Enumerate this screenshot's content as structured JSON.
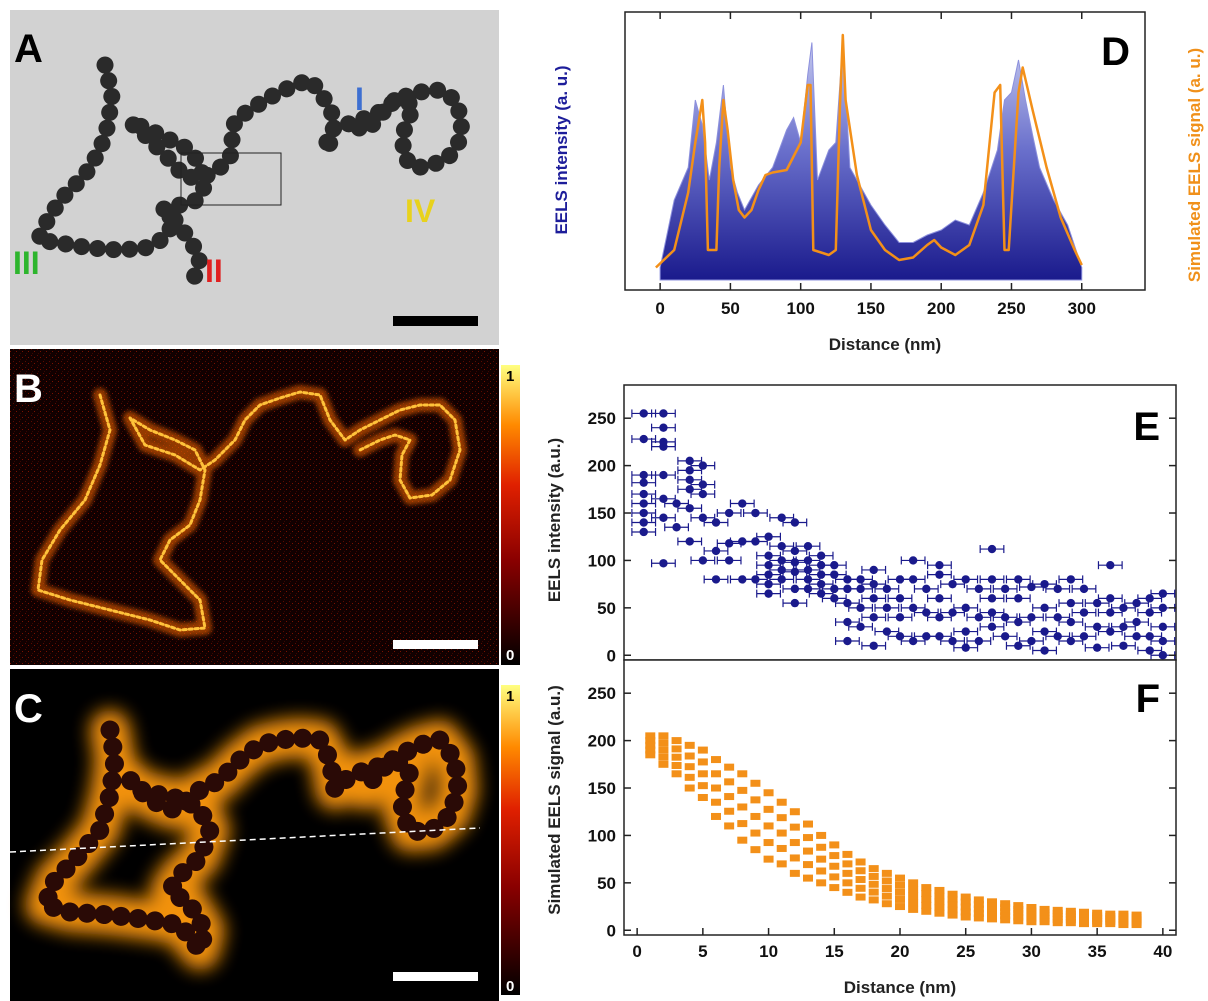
{
  "panels": {
    "A": {
      "letter": "A",
      "chain_labels": [
        {
          "text": "I",
          "color": "#3d6fd1"
        },
        {
          "text": "II",
          "color": "#e02020"
        },
        {
          "text": "III",
          "color": "#2db52d"
        },
        {
          "text": "IV",
          "color": "#e8d21c"
        }
      ]
    },
    "B": {
      "letter": "B",
      "colorbar_max": "1",
      "colorbar_min": "0"
    },
    "C": {
      "letter": "C",
      "colorbar_max": "1",
      "colorbar_min": "0"
    },
    "D": {
      "letter": "D"
    },
    "E": {
      "letter": "E"
    },
    "F": {
      "letter": "F"
    }
  },
  "colors": {
    "eels_blue": "#1a1a8c",
    "sim_orange": "#f39019",
    "label_blue": "#1d1d9a",
    "label_orange": "#f0901a"
  },
  "chart_data": [
    {
      "id": "D",
      "type": "area",
      "xlabel": "Distance (nm)",
      "ylabel_left": "EELS intensity (a. u.)",
      "ylabel_right": "Simulated EELS signal (a. u.)",
      "xlim": [
        -25,
        345
      ],
      "xticks": [
        "0",
        "50",
        "100",
        "150",
        "200",
        "250",
        "300"
      ],
      "xtick_values": [
        0,
        50,
        100,
        150,
        200,
        250,
        300
      ],
      "series": [
        {
          "kind": "measured",
          "x": [
            0,
            10,
            20,
            25,
            30,
            35,
            40,
            45,
            50,
            55,
            60,
            70,
            80,
            90,
            95,
            100,
            105,
            108,
            112,
            120,
            125,
            130,
            135,
            140,
            150,
            160,
            170,
            180,
            190,
            200,
            210,
            220,
            230,
            240,
            245,
            250,
            255,
            260,
            265,
            270,
            280,
            290,
            300
          ],
          "y": [
            0.05,
            0.32,
            0.45,
            0.72,
            0.62,
            0.4,
            0.55,
            0.78,
            0.45,
            0.35,
            0.28,
            0.38,
            0.45,
            0.6,
            0.65,
            0.55,
            0.82,
            0.95,
            0.4,
            0.52,
            0.55,
            0.95,
            0.45,
            0.4,
            0.3,
            0.22,
            0.15,
            0.15,
            0.18,
            0.2,
            0.24,
            0.22,
            0.35,
            0.52,
            0.72,
            0.75,
            0.88,
            0.72,
            0.58,
            0.45,
            0.32,
            0.22,
            0.05
          ]
        },
        {
          "kind": "simulated",
          "x": [
            -3,
            10,
            20,
            25,
            30,
            32,
            34,
            40,
            42,
            45,
            48,
            52,
            56,
            60,
            65,
            70,
            75,
            80,
            90,
            100,
            105,
            107,
            109,
            120,
            125,
            128,
            130,
            132,
            140,
            150,
            160,
            170,
            180,
            190,
            195,
            200,
            210,
            220,
            230,
            238,
            242,
            245,
            248,
            255,
            258,
            265,
            275,
            285,
            295,
            300
          ],
          "y": [
            0.05,
            0.12,
            0.35,
            0.55,
            0.72,
            0.55,
            0.12,
            0.12,
            0.45,
            0.72,
            0.6,
            0.4,
            0.28,
            0.25,
            0.28,
            0.36,
            0.42,
            0.43,
            0.44,
            0.55,
            0.78,
            0.78,
            0.12,
            0.1,
            0.12,
            0.7,
            0.98,
            0.72,
            0.42,
            0.2,
            0.12,
            0.08,
            0.09,
            0.14,
            0.16,
            0.13,
            0.1,
            0.14,
            0.3,
            0.75,
            0.78,
            0.12,
            0.12,
            0.75,
            0.85,
            0.68,
            0.45,
            0.25,
            0.12,
            0.06
          ]
        }
      ]
    },
    {
      "id": "E",
      "type": "scatter",
      "ylabel": "EELS intensity (a.u.)",
      "xlim": [
        -1,
        41
      ],
      "ylim": [
        -5,
        285
      ],
      "yticks": [
        "0",
        "50",
        "100",
        "150",
        "200",
        "250"
      ],
      "ytick_values": [
        0,
        50,
        100,
        150,
        200,
        250
      ],
      "xerr": 0.9,
      "points": [
        [
          0.5,
          255
        ],
        [
          0.5,
          228
        ],
        [
          0.5,
          190
        ],
        [
          0.5,
          182
        ],
        [
          0.5,
          170
        ],
        [
          0.5,
          160
        ],
        [
          0.5,
          150
        ],
        [
          0.5,
          140
        ],
        [
          0.5,
          130
        ],
        [
          2,
          255
        ],
        [
          2,
          240
        ],
        [
          2,
          225
        ],
        [
          2,
          220
        ],
        [
          2,
          190
        ],
        [
          2,
          165
        ],
        [
          2,
          145
        ],
        [
          2,
          97
        ],
        [
          3,
          160
        ],
        [
          3,
          135
        ],
        [
          4,
          205
        ],
        [
          4,
          195
        ],
        [
          4,
          185
        ],
        [
          4,
          175
        ],
        [
          4,
          155
        ],
        [
          4,
          120
        ],
        [
          5,
          200
        ],
        [
          5,
          180
        ],
        [
          5,
          170
        ],
        [
          5,
          145
        ],
        [
          5,
          100
        ],
        [
          6,
          140
        ],
        [
          6,
          110
        ],
        [
          6,
          80
        ],
        [
          7,
          150
        ],
        [
          7,
          118
        ],
        [
          7,
          100
        ],
        [
          8,
          160
        ],
        [
          8,
          120
        ],
        [
          8,
          80
        ],
        [
          9,
          150
        ],
        [
          9,
          120
        ],
        [
          9,
          80
        ],
        [
          10,
          125
        ],
        [
          10,
          105
        ],
        [
          10,
          95
        ],
        [
          10,
          85
        ],
        [
          10,
          75
        ],
        [
          10,
          65
        ],
        [
          11,
          145
        ],
        [
          11,
          115
        ],
        [
          11,
          100
        ],
        [
          11,
          90
        ],
        [
          11,
          80
        ],
        [
          12,
          140
        ],
        [
          12,
          110
        ],
        [
          12,
          98
        ],
        [
          12,
          88
        ],
        [
          12,
          70
        ],
        [
          12,
          55
        ],
        [
          13,
          115
        ],
        [
          13,
          100
        ],
        [
          13,
          90
        ],
        [
          13,
          80
        ],
        [
          13,
          70
        ],
        [
          14,
          105
        ],
        [
          14,
          95
        ],
        [
          14,
          85
        ],
        [
          14,
          75
        ],
        [
          14,
          65
        ],
        [
          15,
          95
        ],
        [
          15,
          85
        ],
        [
          15,
          70
        ],
        [
          15,
          60
        ],
        [
          16,
          80
        ],
        [
          16,
          70
        ],
        [
          16,
          55
        ],
        [
          16,
          35
        ],
        [
          16,
          15
        ],
        [
          17,
          80
        ],
        [
          17,
          70
        ],
        [
          17,
          50
        ],
        [
          17,
          30
        ],
        [
          18,
          90
        ],
        [
          18,
          75
        ],
        [
          18,
          60
        ],
        [
          18,
          40
        ],
        [
          18,
          10
        ],
        [
          19,
          70
        ],
        [
          19,
          50
        ],
        [
          19,
          25
        ],
        [
          20,
          80
        ],
        [
          20,
          60
        ],
        [
          20,
          40
        ],
        [
          20,
          20
        ],
        [
          21,
          100
        ],
        [
          21,
          80
        ],
        [
          21,
          50
        ],
        [
          21,
          15
        ],
        [
          22,
          70
        ],
        [
          22,
          45
        ],
        [
          22,
          20
        ],
        [
          23,
          95
        ],
        [
          23,
          85
        ],
        [
          23,
          60
        ],
        [
          23,
          40
        ],
        [
          23,
          20
        ],
        [
          24,
          75
        ],
        [
          24,
          45
        ],
        [
          24,
          15
        ],
        [
          25,
          80
        ],
        [
          25,
          50
        ],
        [
          25,
          25
        ],
        [
          25,
          8
        ],
        [
          26,
          70
        ],
        [
          26,
          40
        ],
        [
          26,
          15
        ],
        [
          27,
          112
        ],
        [
          27,
          80
        ],
        [
          27,
          60
        ],
        [
          27,
          45
        ],
        [
          27,
          30
        ],
        [
          28,
          70
        ],
        [
          28,
          40
        ],
        [
          28,
          20
        ],
        [
          29,
          80
        ],
        [
          29,
          60
        ],
        [
          29,
          35
        ],
        [
          29,
          10
        ],
        [
          30,
          72
        ],
        [
          30,
          40
        ],
        [
          30,
          15
        ],
        [
          31,
          75
        ],
        [
          31,
          50
        ],
        [
          31,
          25
        ],
        [
          31,
          5
        ],
        [
          32,
          70
        ],
        [
          32,
          40
        ],
        [
          32,
          20
        ],
        [
          33,
          80
        ],
        [
          33,
          55
        ],
        [
          33,
          35
        ],
        [
          33,
          15
        ],
        [
          34,
          70
        ],
        [
          34,
          45
        ],
        [
          34,
          20
        ],
        [
          35,
          55
        ],
        [
          35,
          30
        ],
        [
          35,
          8
        ],
        [
          36,
          95
        ],
        [
          36,
          60
        ],
        [
          36,
          45
        ],
        [
          36,
          25
        ],
        [
          37,
          50
        ],
        [
          37,
          30
        ],
        [
          37,
          10
        ],
        [
          38,
          55
        ],
        [
          38,
          35
        ],
        [
          38,
          20
        ],
        [
          39,
          60
        ],
        [
          39,
          45
        ],
        [
          39,
          20
        ],
        [
          39,
          5
        ],
        [
          40,
          65
        ],
        [
          40,
          50
        ],
        [
          40,
          30
        ],
        [
          40,
          15
        ],
        [
          40,
          0
        ]
      ]
    },
    {
      "id": "F",
      "type": "scatter",
      "xlabel": "Distance (nm)",
      "ylabel": "Simulated EELS signal (a.u.)",
      "xlim": [
        -1,
        41
      ],
      "ylim": [
        -5,
        285
      ],
      "xticks": [
        "0",
        "5",
        "10",
        "15",
        "20",
        "25",
        "30",
        "35",
        "40"
      ],
      "xtick_values": [
        0,
        5,
        10,
        15,
        20,
        25,
        30,
        35,
        40
      ],
      "yticks": [
        "0",
        "50",
        "100",
        "150",
        "200",
        "250"
      ],
      "ytick_values": [
        0,
        50,
        100,
        150,
        200,
        250
      ],
      "columns": [
        {
          "x": 1,
          "top": 205,
          "bottom": 185
        },
        {
          "x": 2,
          "top": 205,
          "bottom": 175
        },
        {
          "x": 3,
          "top": 200,
          "bottom": 165
        },
        {
          "x": 4,
          "top": 195,
          "bottom": 150
        },
        {
          "x": 5,
          "top": 190,
          "bottom": 140
        },
        {
          "x": 6,
          "top": 180,
          "bottom": 120
        },
        {
          "x": 7,
          "top": 172,
          "bottom": 110
        },
        {
          "x": 8,
          "top": 165,
          "bottom": 95
        },
        {
          "x": 9,
          "top": 155,
          "bottom": 85
        },
        {
          "x": 10,
          "top": 145,
          "bottom": 75
        },
        {
          "x": 11,
          "top": 135,
          "bottom": 70
        },
        {
          "x": 12,
          "top": 125,
          "bottom": 60
        },
        {
          "x": 13,
          "top": 112,
          "bottom": 55
        },
        {
          "x": 14,
          "top": 100,
          "bottom": 50
        },
        {
          "x": 15,
          "top": 90,
          "bottom": 45
        },
        {
          "x": 16,
          "top": 80,
          "bottom": 40
        },
        {
          "x": 17,
          "top": 72,
          "bottom": 35
        },
        {
          "x": 18,
          "top": 65,
          "bottom": 32
        },
        {
          "x": 19,
          "top": 60,
          "bottom": 28
        },
        {
          "x": 20,
          "top": 55,
          "bottom": 25
        },
        {
          "x": 21,
          "top": 50,
          "bottom": 22
        },
        {
          "x": 22,
          "top": 45,
          "bottom": 20
        },
        {
          "x": 23,
          "top": 42,
          "bottom": 18
        },
        {
          "x": 24,
          "top": 38,
          "bottom": 16
        },
        {
          "x": 25,
          "top": 35,
          "bottom": 14
        },
        {
          "x": 26,
          "top": 32,
          "bottom": 13
        },
        {
          "x": 27,
          "top": 30,
          "bottom": 12
        },
        {
          "x": 28,
          "top": 28,
          "bottom": 11
        },
        {
          "x": 29,
          "top": 26,
          "bottom": 10
        },
        {
          "x": 30,
          "top": 24,
          "bottom": 9
        },
        {
          "x": 31,
          "top": 22,
          "bottom": 9
        },
        {
          "x": 32,
          "top": 21,
          "bottom": 8
        },
        {
          "x": 33,
          "top": 20,
          "bottom": 8
        },
        {
          "x": 34,
          "top": 19,
          "bottom": 7
        },
        {
          "x": 35,
          "top": 18,
          "bottom": 7
        },
        {
          "x": 36,
          "top": 17,
          "bottom": 7
        },
        {
          "x": 37,
          "top": 17,
          "bottom": 6
        },
        {
          "x": 38,
          "top": 16,
          "bottom": 6
        }
      ]
    }
  ]
}
